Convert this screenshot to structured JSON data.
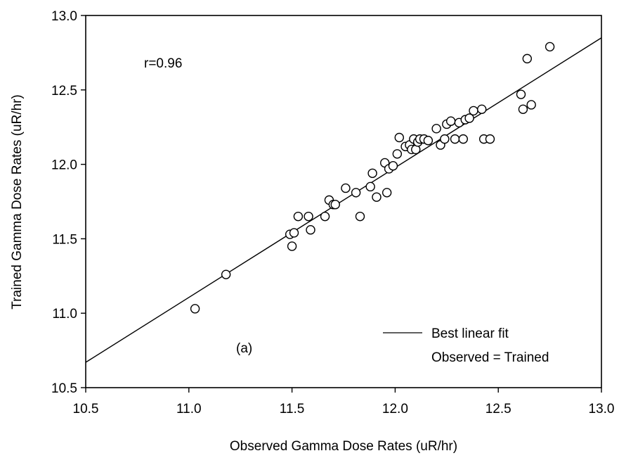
{
  "chart_data": {
    "type": "scatter",
    "title": "",
    "xlabel": "Observed Gamma Dose Rates (uR/hr)",
    "ylabel": "Trained Gamma Dose Rates (uR/hr)",
    "xlim": [
      10.5,
      13.0
    ],
    "ylim": [
      10.5,
      13.0
    ],
    "xticks": [
      "10.5",
      "11.0",
      "11.5",
      "12.0",
      "12.5",
      "13.0"
    ],
    "yticks": [
      "10.5",
      "11.0",
      "11.5",
      "12.0",
      "12.5",
      "13.0"
    ],
    "grid": false,
    "legend_position": "bottom-right",
    "annotations": {
      "correlation": "r=0.96",
      "panel_label": "(a)"
    },
    "legend": [
      {
        "label": "Best linear fit",
        "style": "line"
      },
      {
        "label": "Observed = Trained",
        "style": "none"
      }
    ],
    "fit_line": {
      "x": [
        10.5,
        13.0
      ],
      "y": [
        10.67,
        12.85
      ]
    },
    "series": [
      {
        "marker": "open-circle",
        "points": [
          [
            11.03,
            11.03
          ],
          [
            11.18,
            11.26
          ],
          [
            11.49,
            11.53
          ],
          [
            11.5,
            11.45
          ],
          [
            11.51,
            11.54
          ],
          [
            11.53,
            11.65
          ],
          [
            11.58,
            11.65
          ],
          [
            11.59,
            11.56
          ],
          [
            11.66,
            11.65
          ],
          [
            11.68,
            11.76
          ],
          [
            11.7,
            11.73
          ],
          [
            11.71,
            11.73
          ],
          [
            11.76,
            11.84
          ],
          [
            11.81,
            11.81
          ],
          [
            11.83,
            11.65
          ],
          [
            11.88,
            11.85
          ],
          [
            11.89,
            11.94
          ],
          [
            11.91,
            11.78
          ],
          [
            11.95,
            12.01
          ],
          [
            11.96,
            11.81
          ],
          [
            11.97,
            11.97
          ],
          [
            11.99,
            11.99
          ],
          [
            12.01,
            12.07
          ],
          [
            12.02,
            12.18
          ],
          [
            12.05,
            12.12
          ],
          [
            12.07,
            12.13
          ],
          [
            12.08,
            12.1
          ],
          [
            12.09,
            12.17
          ],
          [
            12.1,
            12.1
          ],
          [
            12.11,
            12.15
          ],
          [
            12.12,
            12.17
          ],
          [
            12.14,
            12.17
          ],
          [
            12.16,
            12.16
          ],
          [
            12.2,
            12.24
          ],
          [
            12.22,
            12.13
          ],
          [
            12.24,
            12.17
          ],
          [
            12.25,
            12.27
          ],
          [
            12.27,
            12.29
          ],
          [
            12.29,
            12.17
          ],
          [
            12.31,
            12.28
          ],
          [
            12.33,
            12.17
          ],
          [
            12.34,
            12.3
          ],
          [
            12.36,
            12.31
          ],
          [
            12.38,
            12.36
          ],
          [
            12.42,
            12.37
          ],
          [
            12.43,
            12.17
          ],
          [
            12.46,
            12.17
          ],
          [
            12.61,
            12.47
          ],
          [
            12.62,
            12.37
          ],
          [
            12.64,
            12.71
          ],
          [
            12.66,
            12.4
          ],
          [
            12.75,
            12.79
          ]
        ]
      }
    ]
  }
}
